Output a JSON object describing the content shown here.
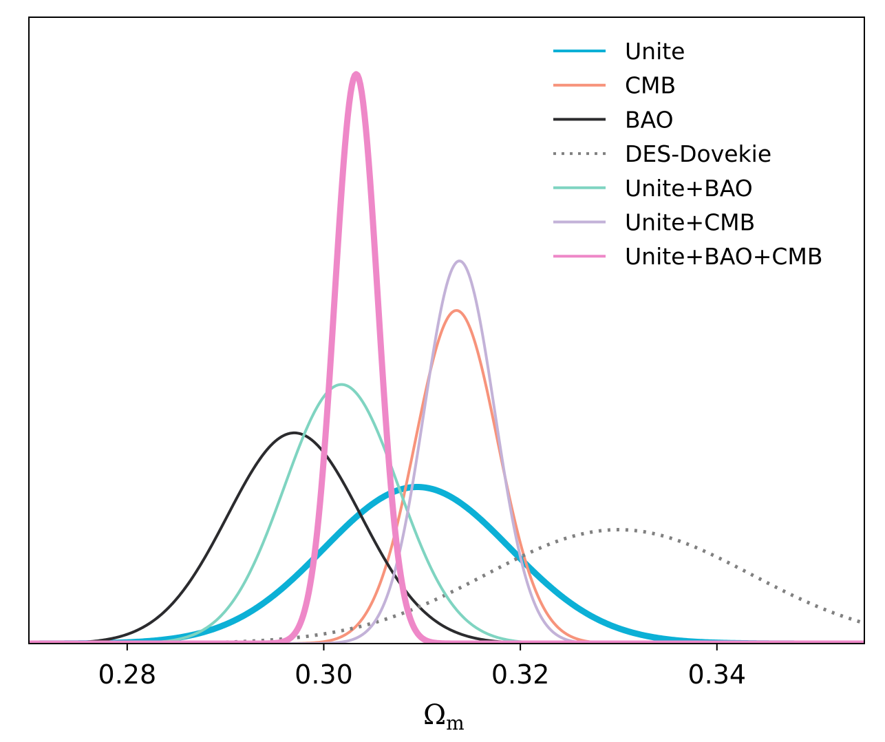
{
  "chart_data": {
    "type": "line",
    "title": "",
    "xlabel": "Ω",
    "xlabel_subscript": "m",
    "ylabel": "",
    "xlim": [
      0.27,
      0.355
    ],
    "ylim": [
      0,
      1.1
    ],
    "xticks": [
      {
        "value": 0.28,
        "label": "0.28"
      },
      {
        "value": 0.3,
        "label": "0.30"
      },
      {
        "value": 0.32,
        "label": "0.32"
      },
      {
        "value": 0.34,
        "label": "0.34"
      }
    ],
    "grid": false,
    "legend_position": "top-right",
    "series": [
      {
        "name": "Unite",
        "color": "#0cb0d6",
        "style": "solid",
        "width": 9,
        "mean": 0.3095,
        "sigma": 0.0095,
        "peak": 0.275
      },
      {
        "name": "CMB",
        "color": "#f7937b",
        "style": "solid",
        "width": 4,
        "mean": 0.3135,
        "sigma": 0.0042,
        "peak": 0.585
      },
      {
        "name": "BAO",
        "color": "#2b2b2e",
        "style": "solid",
        "width": 4,
        "mean": 0.297,
        "sigma": 0.0068,
        "peak": 0.37
      },
      {
        "name": "DES-Dovekie",
        "color": "#808080",
        "style": "dotted",
        "width": 5,
        "mean": 0.33,
        "sigma": 0.0135,
        "peak": 0.2
      },
      {
        "name": "Unite+BAO",
        "color": "#7fd4c1",
        "style": "solid",
        "width": 4,
        "mean": 0.3018,
        "sigma": 0.0058,
        "peak": 0.455
      },
      {
        "name": "Unite+CMB",
        "color": "#c3b2d8",
        "style": "solid",
        "width": 4,
        "mean": 0.3138,
        "sigma": 0.0036,
        "peak": 0.672
      },
      {
        "name": "Unite+BAO+CMB",
        "color": "#ee88c8",
        "style": "solid",
        "width": 9,
        "mean": 0.3033,
        "sigma": 0.0022,
        "peak": 1.0
      }
    ]
  }
}
